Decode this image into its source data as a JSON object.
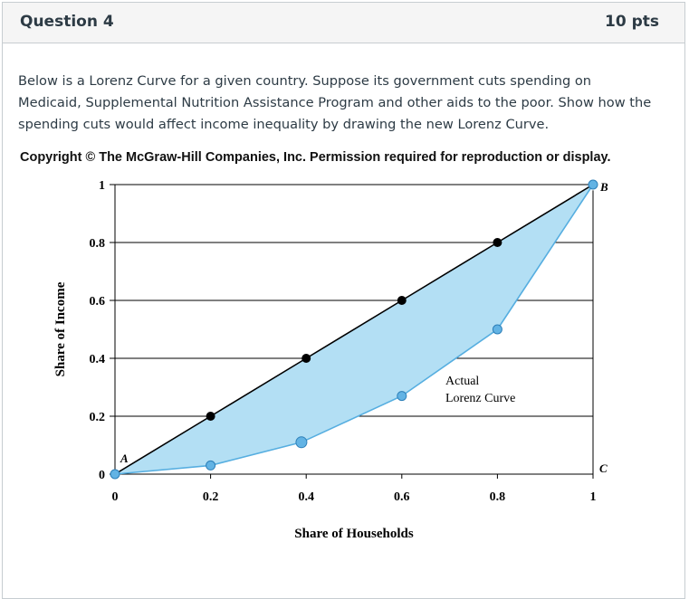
{
  "question": {
    "title": "Question 4",
    "points": "10 pts",
    "text": "Below is a Lorenz Curve for a given country.  Suppose its government cuts spending on Medicaid, Supplemental Nutrition Assistance Program and other aids to the poor.  Show how the spending cuts would affect income inequality by drawing the new Lorenz Curve.",
    "copyright": "Copyright © The McGraw-Hill Companies, Inc. Permission required for reproduction or display."
  },
  "colors": {
    "fill": "#b3dff4",
    "curve": "#56aee0",
    "point_fill": "#62b3e4",
    "equality_point": "#000000",
    "grid": "#000000"
  },
  "chart_data": {
    "type": "line",
    "xlabel": "Share of Households",
    "ylabel": "Share of Income",
    "xlim": [
      0,
      1
    ],
    "ylim": [
      0,
      1
    ],
    "x_ticks": [
      "0",
      "0.2",
      "0.4",
      "0.6",
      "0.8",
      "1"
    ],
    "y_ticks": [
      "0",
      "0.2",
      "0.4",
      "0.6",
      "0.8",
      "1"
    ],
    "grid": "horizontal",
    "series": [
      {
        "x": [
          0,
          0.2,
          0.4,
          0.6,
          0.8,
          1
        ],
        "y": [
          0,
          0.2,
          0.4,
          0.6,
          0.8,
          1
        ]
      },
      {
        "name": "Actual Lorenz Curve",
        "x": [
          0,
          0.2,
          0.39,
          0.6,
          0.8,
          1
        ],
        "y": [
          0,
          0.03,
          0.11,
          0.27,
          0.5,
          1
        ]
      }
    ],
    "annotations": {
      "point_a": "A",
      "point_b": "B",
      "point_c": "C",
      "curve_label_line1": "Actual",
      "curve_label_line2": "Lorenz Curve"
    }
  }
}
